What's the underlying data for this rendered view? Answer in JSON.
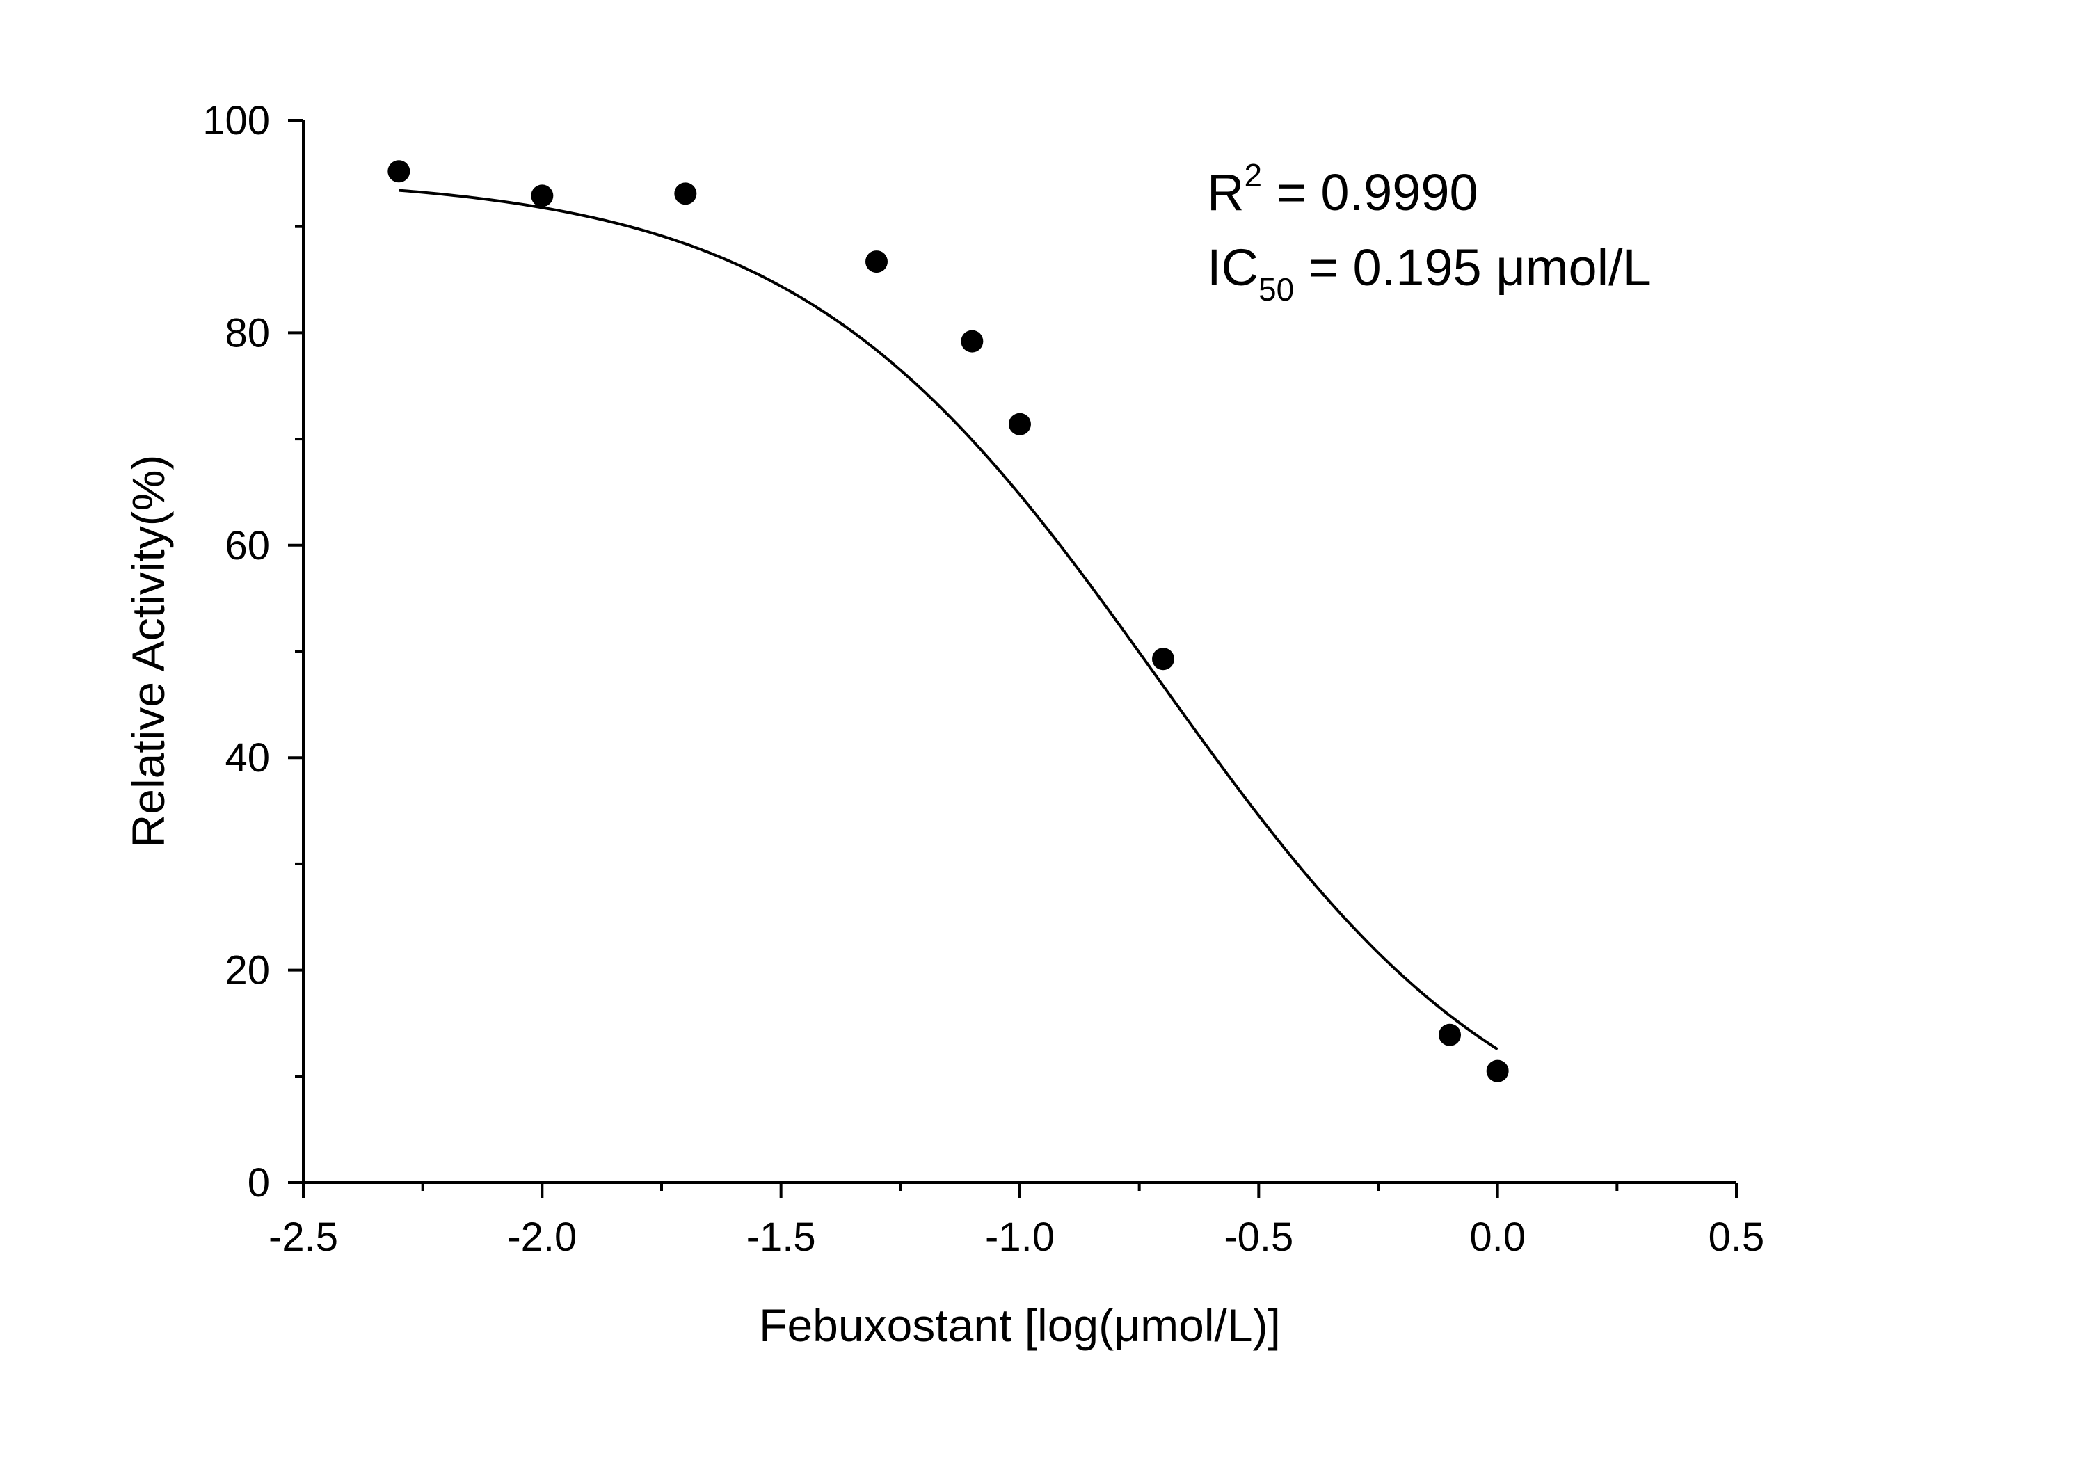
{
  "chart_data": {
    "type": "scatter",
    "title": "",
    "xlabel": "Febuxostant [log(μmol/L)]",
    "ylabel": "Relative Activity(%)",
    "xlim": [
      -2.5,
      0.5
    ],
    "ylim": [
      0,
      100
    ],
    "x_ticks": [
      -2.5,
      -2.0,
      -1.5,
      -1.0,
      -0.5,
      0.0,
      0.5
    ],
    "x_tick_labels": [
      "-2.5",
      "-2.0",
      "-1.5",
      "-1.0",
      "-0.5",
      "0.0",
      "0.5"
    ],
    "y_ticks": [
      0,
      20,
      40,
      60,
      80,
      100
    ],
    "y_tick_labels": [
      "0",
      "20",
      "40",
      "60",
      "80",
      "100"
    ],
    "grid": false,
    "points": {
      "x": [
        -2.3,
        -2.0,
        -1.7,
        -1.3,
        -1.1,
        -1.0,
        -0.7,
        -0.1,
        0.0
      ],
      "y": [
        95.2,
        92.9,
        93.1,
        86.7,
        79.2,
        71.4,
        49.3,
        13.9,
        10.5
      ]
    },
    "fit": {
      "model": "four-parameter logistic",
      "top": 94.8,
      "bottom": 0,
      "log_ic50": -0.71,
      "hill_slope": 1.15,
      "x_range": [
        -2.3,
        0.0
      ]
    },
    "annotations": {
      "r2_label": "R",
      "r2_superscript": "2",
      "r2_value": " = 0.9990",
      "ic50_label": "IC",
      "ic50_subscript": "50",
      "ic50_value": " = 0.195 μmol/L"
    },
    "colors": {
      "marker": "#000000",
      "line": "#000000",
      "axis": "#000000"
    }
  }
}
